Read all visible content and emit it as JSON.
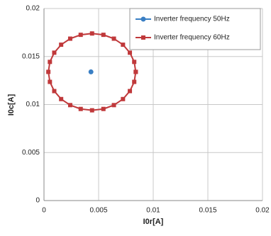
{
  "chart_data": {
    "type": "scatter",
    "x_label": "I0r[A]",
    "y_label": "I0c[A]",
    "xlim": [
      0,
      0.02
    ],
    "xticks": [
      0,
      0.005,
      0.01,
      0.015,
      0.02
    ],
    "ylim": [
      0,
      0.02
    ],
    "yticks": [
      0,
      0.005,
      0.01,
      0.015,
      0.02
    ],
    "grid": true,
    "legend": "upper right",
    "series": [
      {
        "name": "Inverter frequency 50Hz",
        "color": "#3a7fc4",
        "marker": "circle",
        "line": false,
        "x": [
          0.0043
        ],
        "values": [
          0.0134
        ]
      },
      {
        "name": "Inverter frequency 60Hz",
        "color": "#c0393b",
        "marker": "square",
        "line": true,
        "x": [
          0.0084,
          0.00826,
          0.00786,
          0.00723,
          0.0064,
          0.00544,
          0.0044,
          0.00336,
          0.0024,
          0.00157,
          0.00094,
          0.00054,
          0.0004,
          0.00054,
          0.00094,
          0.00157,
          0.0024,
          0.00336,
          0.0044,
          0.00544,
          0.0064,
          0.00723,
          0.00786,
          0.00826,
          0.0084
        ],
        "values": [
          0.0134,
          0.01444,
          0.0154,
          0.01623,
          0.01686,
          0.01726,
          0.0174,
          0.01726,
          0.01686,
          0.01623,
          0.0154,
          0.01444,
          0.0134,
          0.01236,
          0.0114,
          0.01057,
          0.00994,
          0.00954,
          0.0094,
          0.00954,
          0.00994,
          0.01057,
          0.0114,
          0.01236,
          0.0134
        ]
      }
    ]
  }
}
